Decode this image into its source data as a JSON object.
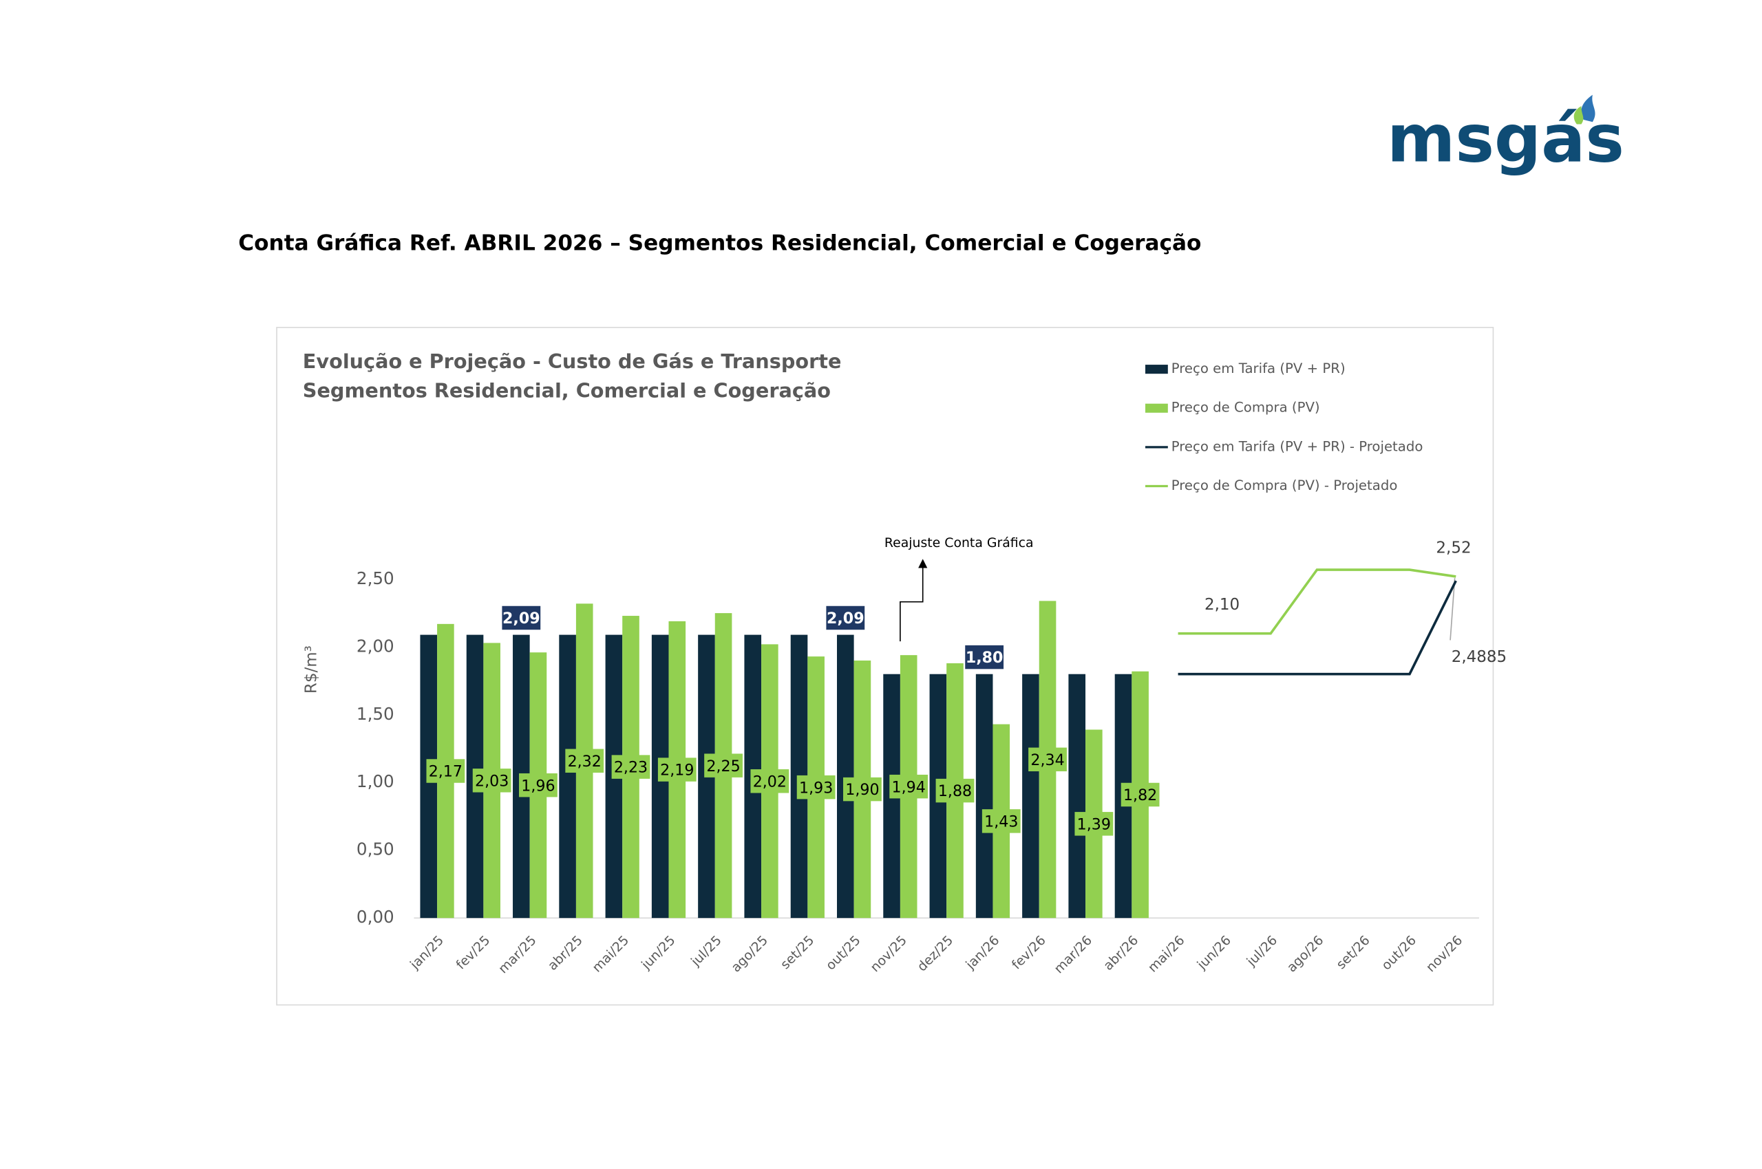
{
  "logo": "msgás",
  "page_title": "Conta Gráfica Ref. ABRIL 2026 – Segmentos Residencial, Comercial e Cogeração",
  "chart_data": {
    "type": "bar",
    "title": "Evolução e Projeção - Custo de Gás e Transporte",
    "subtitle": "Segmentos Residencial, Comercial e Cogeração",
    "y_label": "R$/m³",
    "annotation": "Reajuste Conta Gráfica",
    "categories": [
      "jan/25",
      "fev/25",
      "mar/25",
      "abr/25",
      "mai/25",
      "jun/25",
      "jul/25",
      "ago/25",
      "set/25",
      "out/25",
      "nov/25",
      "dez/25",
      "jan/26",
      "fev/26",
      "mar/26",
      "abr/26",
      "mai/26",
      "jun/26",
      "jul/26",
      "ago/26",
      "set/26",
      "out/26",
      "nov/26"
    ],
    "ylim": [
      0,
      2.5
    ],
    "yticks": [
      {
        "value": 0,
        "label": "0,00"
      },
      {
        "value": 0.5,
        "label": "0,50"
      },
      {
        "value": 1,
        "label": "1,00"
      },
      {
        "value": 1.5,
        "label": "1,50"
      },
      {
        "value": 2,
        "label": "2,00"
      },
      {
        "value": 2.5,
        "label": "2,50"
      }
    ],
    "grid": false,
    "legend": "top-right",
    "series": [
      {
        "name": "Preço em Tarifa (PV + PR)",
        "kind": "bar",
        "color": "#0d2b3e",
        "label_color": "#1f3864",
        "values": [
          2.09,
          2.09,
          2.09,
          2.09,
          2.09,
          2.09,
          2.09,
          2.09,
          2.09,
          2.09,
          1.8,
          1.8,
          1.8,
          1.8,
          1.8,
          1.8,
          null,
          null,
          null,
          null,
          null,
          null,
          null
        ],
        "value_labels": [
          null,
          null,
          "2,09",
          null,
          null,
          null,
          null,
          null,
          null,
          "2,09",
          null,
          null,
          "1,80",
          null,
          null,
          null,
          null,
          null,
          null,
          null,
          null,
          null,
          null
        ]
      },
      {
        "name": "Preço de Compra (PV)",
        "kind": "bar",
        "color": "#92d050",
        "label_color": "#92d050",
        "values": [
          2.17,
          2.03,
          1.96,
          2.32,
          2.23,
          2.19,
          2.25,
          2.02,
          1.93,
          1.9,
          1.94,
          1.88,
          1.43,
          2.34,
          1.39,
          1.82,
          null,
          null,
          null,
          null,
          null,
          null,
          null
        ],
        "value_labels": [
          "2,17",
          "2,03",
          "1,96",
          "2,32",
          "2,23",
          "2,19",
          "2,25",
          "2,02",
          "1,93",
          "1,90",
          "1,94",
          "1,88",
          "1,43",
          "2,34",
          "1,39",
          "1,82",
          null,
          null,
          null,
          null,
          null,
          null,
          null
        ]
      },
      {
        "name": "Preço em Tarifa (PV + PR) - Projetado",
        "kind": "line",
        "color": "#0d2b3e",
        "values": [
          null,
          null,
          null,
          null,
          null,
          null,
          null,
          null,
          null,
          null,
          null,
          null,
          null,
          null,
          null,
          null,
          1.8,
          1.8,
          1.8,
          1.8,
          1.8,
          1.8,
          2.4885
        ],
        "value_labels": [
          null,
          null,
          null,
          null,
          null,
          null,
          null,
          null,
          null,
          null,
          null,
          null,
          null,
          null,
          null,
          null,
          null,
          null,
          null,
          null,
          null,
          null,
          "2,4885"
        ]
      },
      {
        "name": "Preço de Compra (PV) - Projetado",
        "kind": "line",
        "color": "#92d050",
        "values": [
          null,
          null,
          null,
          null,
          null,
          null,
          null,
          null,
          null,
          null,
          null,
          null,
          null,
          null,
          null,
          null,
          2.1,
          2.1,
          2.1,
          2.57,
          2.57,
          2.57,
          2.52
        ],
        "value_labels": [
          null,
          null,
          null,
          null,
          null,
          null,
          null,
          null,
          null,
          null,
          null,
          null,
          null,
          null,
          null,
          null,
          null,
          "2,10",
          null,
          null,
          null,
          null,
          "2,52"
        ]
      }
    ]
  }
}
